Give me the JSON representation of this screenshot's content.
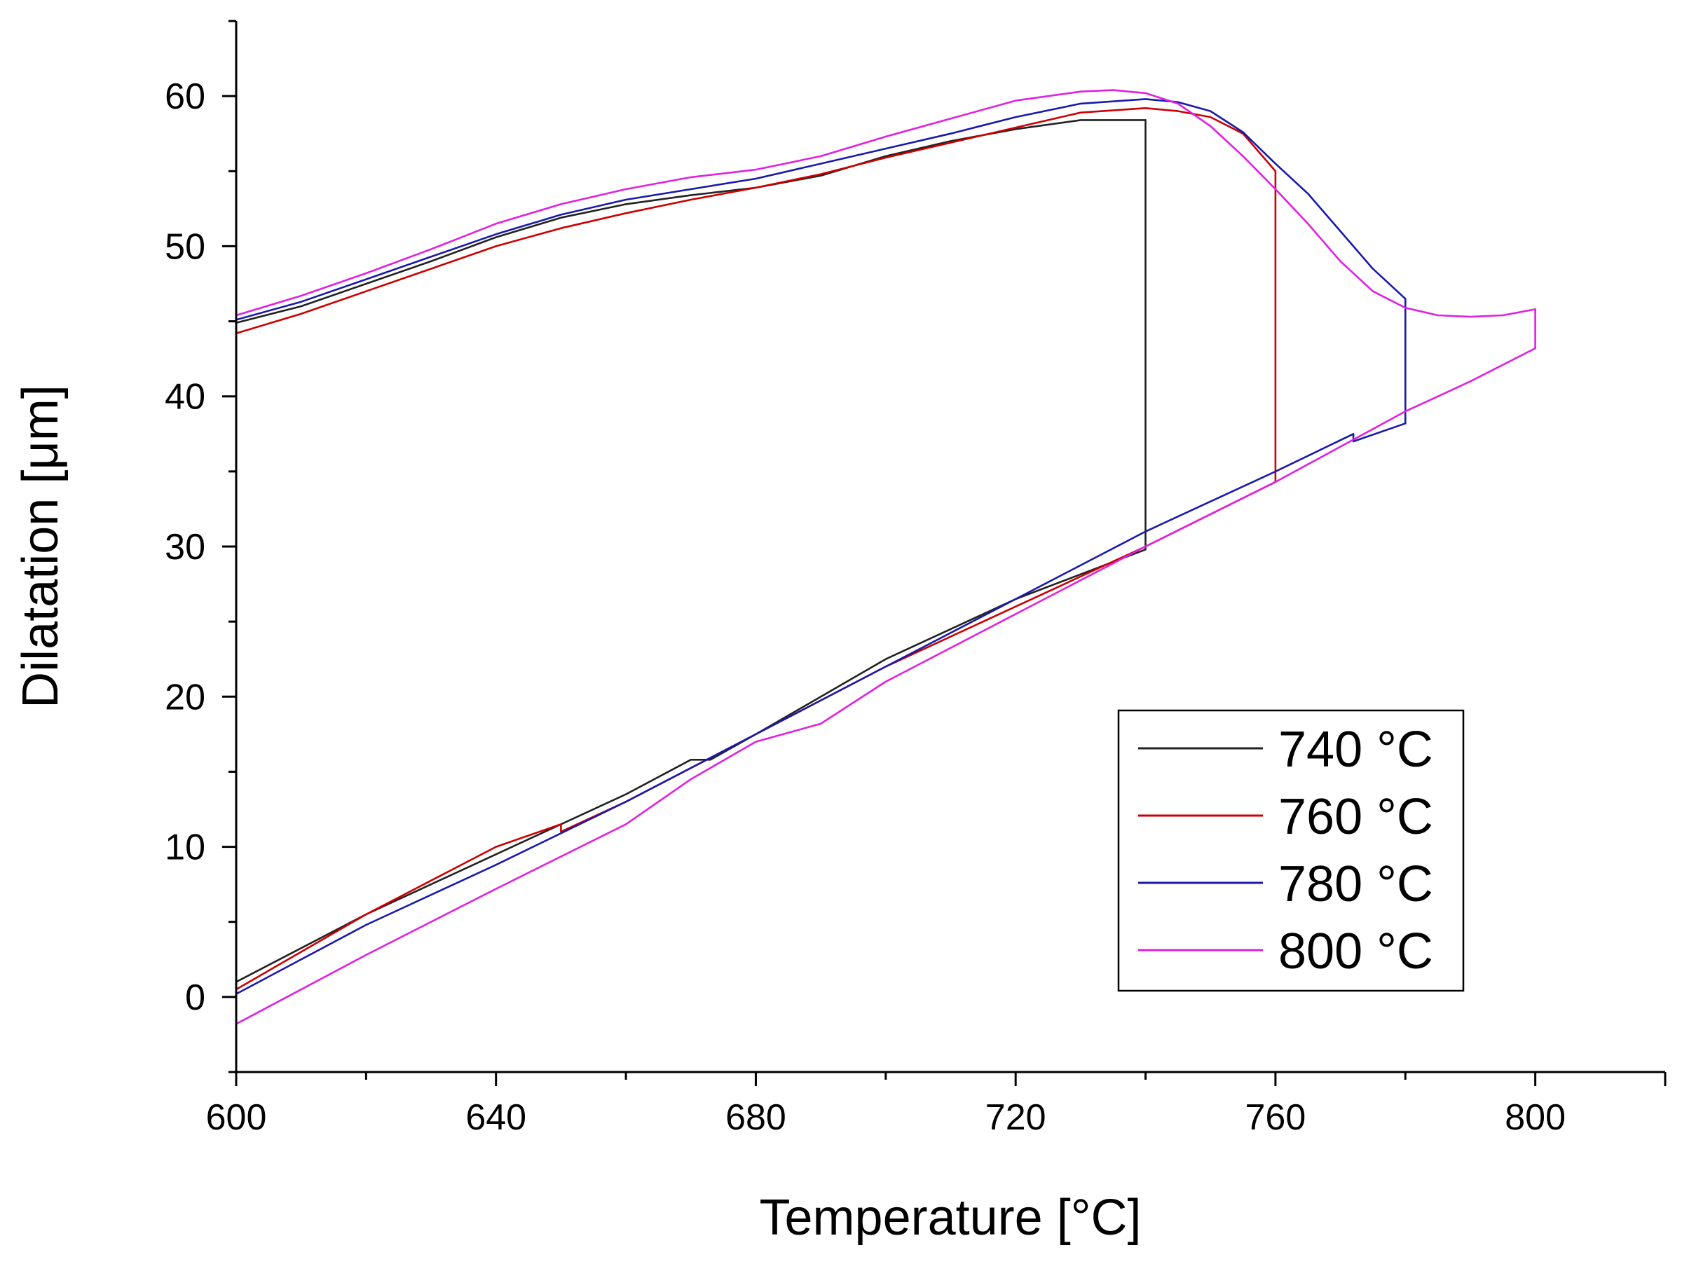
{
  "chart_data": {
    "type": "line",
    "title": "",
    "xlabel": "Temperature [°C]",
    "ylabel": "Dilatation [μm]",
    "xlim": [
      600,
      820
    ],
    "ylim": [
      -5,
      65
    ],
    "xticks": [
      600,
      640,
      680,
      720,
      760,
      800
    ],
    "yticks": [
      0,
      10,
      20,
      30,
      40,
      50,
      60
    ],
    "xtick_labels": [
      "600",
      "640",
      "680",
      "720",
      "760",
      "800"
    ],
    "ytick_labels": [
      "0",
      "10",
      "20",
      "30",
      "40",
      "50",
      "60"
    ],
    "legend_position": "bottom-right",
    "series": [
      {
        "name": "740 °C",
        "color": "#222222",
        "heating": [
          [
            600,
            1
          ],
          [
            620,
            5.5
          ],
          [
            640,
            9.5
          ],
          [
            660,
            13.5
          ],
          [
            670,
            15.8
          ],
          [
            673,
            15.8
          ],
          [
            680,
            17.5
          ],
          [
            700,
            22.5
          ],
          [
            720,
            26.5
          ],
          [
            740,
            29.8
          ]
        ],
        "hold": [
          [
            740,
            29.8
          ],
          [
            740,
            58.4
          ]
        ],
        "cooling": [
          [
            740,
            58.4
          ],
          [
            730,
            58.4
          ],
          [
            720,
            57.8
          ],
          [
            710,
            57
          ],
          [
            700,
            56
          ],
          [
            690,
            54.7
          ],
          [
            680,
            53.9
          ],
          [
            670,
            53.4
          ],
          [
            660,
            52.8
          ],
          [
            650,
            51.9
          ],
          [
            640,
            50.6
          ],
          [
            630,
            49
          ],
          [
            620,
            47.5
          ],
          [
            610,
            46
          ],
          [
            600,
            44.9
          ]
        ]
      },
      {
        "name": "760 °C",
        "color": "#cc0000",
        "heating": [
          [
            600,
            0.5
          ],
          [
            620,
            5.5
          ],
          [
            640,
            10
          ],
          [
            650,
            11.5
          ],
          [
            650,
            11
          ],
          [
            660,
            13
          ],
          [
            680,
            17.5
          ],
          [
            700,
            22
          ],
          [
            720,
            26
          ],
          [
            740,
            30
          ],
          [
            760,
            34.3
          ]
        ],
        "hold": [
          [
            760,
            34.3
          ],
          [
            760,
            55
          ]
        ],
        "cooling": [
          [
            760,
            55
          ],
          [
            755,
            57.5
          ],
          [
            750,
            58.6
          ],
          [
            745,
            59
          ],
          [
            740,
            59.2
          ],
          [
            730,
            58.9
          ],
          [
            720,
            57.9
          ],
          [
            710,
            56.9
          ],
          [
            700,
            55.9
          ],
          [
            690,
            54.8
          ],
          [
            680,
            53.9
          ],
          [
            670,
            53.1
          ],
          [
            660,
            52.2
          ],
          [
            650,
            51.2
          ],
          [
            640,
            50
          ],
          [
            630,
            48.5
          ],
          [
            620,
            47
          ],
          [
            610,
            45.5
          ],
          [
            600,
            44.2
          ]
        ]
      },
      {
        "name": "780 °C",
        "color": "#1a1aaa",
        "heating": [
          [
            600,
            0.2
          ],
          [
            620,
            4.8
          ],
          [
            640,
            8.8
          ],
          [
            660,
            13
          ],
          [
            680,
            17.5
          ],
          [
            700,
            22
          ],
          [
            720,
            26.5
          ],
          [
            740,
            31
          ],
          [
            760,
            35
          ],
          [
            772,
            37.5
          ],
          [
            772,
            37
          ],
          [
            780,
            38.2
          ]
        ],
        "hold": [
          [
            780,
            38.2
          ],
          [
            780,
            46.5
          ]
        ],
        "cooling": [
          [
            780,
            46.5
          ],
          [
            775,
            48.5
          ],
          [
            770,
            51
          ],
          [
            765,
            53.5
          ],
          [
            760,
            55.5
          ],
          [
            755,
            57.6
          ],
          [
            750,
            59
          ],
          [
            745,
            59.6
          ],
          [
            740,
            59.8
          ],
          [
            730,
            59.5
          ],
          [
            720,
            58.6
          ],
          [
            710,
            57.5
          ],
          [
            700,
            56.5
          ],
          [
            690,
            55.5
          ],
          [
            680,
            54.5
          ],
          [
            670,
            53.8
          ],
          [
            660,
            53.1
          ],
          [
            650,
            52.1
          ],
          [
            640,
            50.8
          ],
          [
            630,
            49.3
          ],
          [
            620,
            47.8
          ],
          [
            610,
            46.3
          ],
          [
            600,
            45.1
          ]
        ]
      },
      {
        "name": "800 °C",
        "color": "#e020e0",
        "heating": [
          [
            600,
            -1.8
          ],
          [
            620,
            2.8
          ],
          [
            640,
            7.2
          ],
          [
            660,
            11.5
          ],
          [
            670,
            14.5
          ],
          [
            680,
            17
          ],
          [
            690,
            18.2
          ],
          [
            700,
            21
          ],
          [
            720,
            25.5
          ],
          [
            740,
            30
          ],
          [
            760,
            34.3
          ],
          [
            780,
            39
          ],
          [
            790,
            41
          ],
          [
            800,
            43.2
          ]
        ],
        "hold": [
          [
            800,
            43.2
          ],
          [
            800,
            45.8
          ]
        ],
        "cooling": [
          [
            800,
            45.8
          ],
          [
            795,
            45.4
          ],
          [
            790,
            45.3
          ],
          [
            785,
            45.4
          ],
          [
            780,
            45.9
          ],
          [
            775,
            47
          ],
          [
            770,
            49
          ],
          [
            765,
            51.5
          ],
          [
            760,
            53.8
          ],
          [
            755,
            56
          ],
          [
            750,
            58
          ],
          [
            745,
            59.5
          ],
          [
            740,
            60.2
          ],
          [
            735,
            60.4
          ],
          [
            730,
            60.3
          ],
          [
            720,
            59.7
          ],
          [
            710,
            58.5
          ],
          [
            700,
            57.3
          ],
          [
            690,
            56
          ],
          [
            680,
            55.1
          ],
          [
            670,
            54.6
          ],
          [
            660,
            53.8
          ],
          [
            650,
            52.8
          ],
          [
            640,
            51.5
          ],
          [
            630,
            49.8
          ],
          [
            620,
            48.2
          ],
          [
            610,
            46.7
          ],
          [
            600,
            45.4
          ]
        ]
      }
    ]
  }
}
